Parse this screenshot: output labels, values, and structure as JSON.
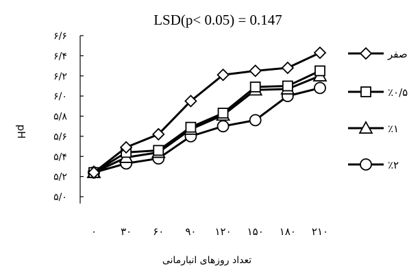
{
  "chart_data": {
    "type": "line",
    "title": "LSD(p< 0.05) = 0.147",
    "xlabel": "تعداد روزهای انبارمانی",
    "ylabel": "pH",
    "ylim": [
      5.0,
      6.6
    ],
    "x": [
      0,
      30,
      60,
      90,
      120,
      150,
      180,
      210
    ],
    "x_tick_labels": [
      "۰",
      "۳۰",
      "۶۰",
      "۹۰",
      "۱۲۰",
      "۱۵۰",
      "۱۸۰",
      "۲۱۰"
    ],
    "y_ticks": [
      5.0,
      5.2,
      5.4,
      5.6,
      5.8,
      6.0,
      6.2,
      6.4,
      6.6
    ],
    "y_tick_labels": [
      "۵/۰",
      "۵/۲",
      "۵/۴",
      "۵/۶",
      "۵/۸",
      "۶/۰",
      "۶/۲",
      "۶/۴",
      "۶/۶"
    ],
    "grid": false,
    "legend_position": "right",
    "series": [
      {
        "name": "صفر",
        "marker": "diamond",
        "values": [
          5.24,
          5.49,
          5.62,
          5.95,
          6.21,
          6.25,
          6.28,
          6.43
        ]
      },
      {
        "name": "٪۰/۵",
        "marker": "square",
        "values": [
          5.24,
          5.44,
          5.46,
          5.69,
          5.83,
          6.09,
          6.1,
          6.25
        ]
      },
      {
        "name": "٪۱",
        "marker": "triangle",
        "values": [
          5.24,
          5.39,
          5.44,
          5.67,
          5.81,
          6.06,
          6.07,
          6.2
        ]
      },
      {
        "name": "٪۲",
        "marker": "circle",
        "values": [
          5.24,
          5.33,
          5.38,
          5.6,
          5.7,
          5.76,
          6.0,
          6.08
        ]
      }
    ],
    "colors": {
      "line": "#000000",
      "marker_fill": "#ffffff",
      "background": "#ffffff"
    }
  }
}
